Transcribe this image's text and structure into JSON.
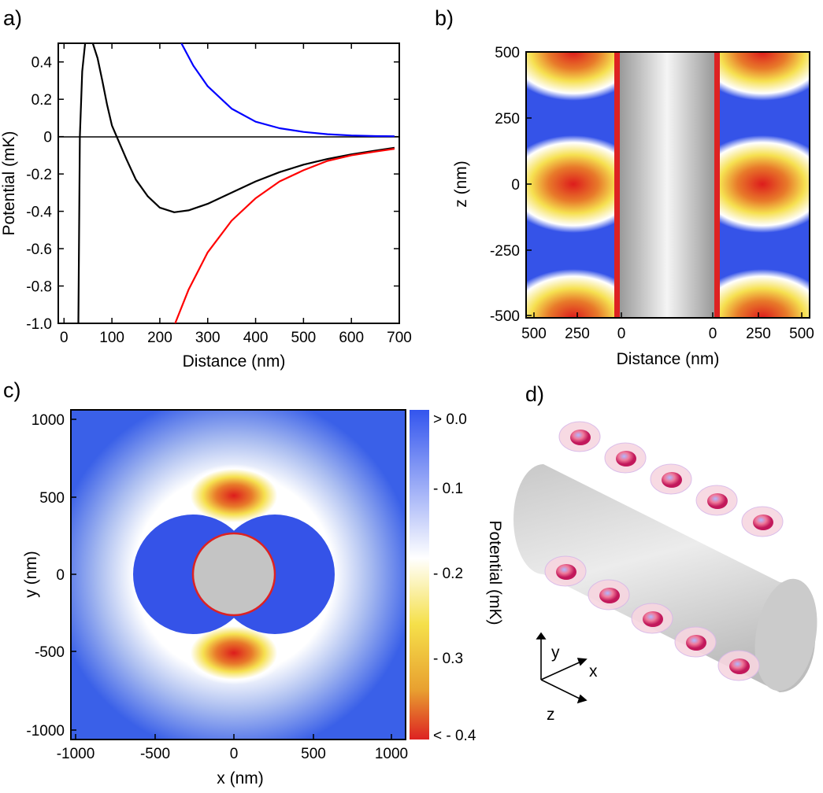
{
  "panels": {
    "a": "a)",
    "b": "b)",
    "c": "c)",
    "d": "d)"
  },
  "chart_data": [
    {
      "panel": "a",
      "type": "line",
      "xlabel": "Distance (nm)",
      "ylabel": "Potential (mK)",
      "xlim": [
        -12,
        700
      ],
      "ylim": [
        -1.0,
        0.5
      ],
      "xticks": [
        "0",
        "100",
        "200",
        "300",
        "400",
        "500",
        "600",
        "700"
      ],
      "yticks": [
        "0.4",
        "0.2",
        "0",
        "-0.2",
        "-0.4",
        "-0.6",
        "-0.8",
        "-1.0"
      ],
      "series": [
        {
          "color": "#000000",
          "x": [
            30,
            33,
            38,
            44,
            50,
            60,
            70,
            80,
            90,
            100,
            110,
            130,
            150,
            175,
            200,
            230,
            260,
            300,
            350,
            400,
            450,
            500,
            550,
            600,
            650,
            690
          ],
          "y": [
            -1.0,
            0.0,
            0.35,
            0.5,
            0.52,
            0.5,
            0.42,
            0.3,
            0.17,
            0.06,
            0.0,
            -0.12,
            -0.23,
            -0.32,
            -0.38,
            -0.405,
            -0.395,
            -0.36,
            -0.3,
            -0.24,
            -0.19,
            -0.15,
            -0.12,
            -0.095,
            -0.075,
            -0.06
          ]
        },
        {
          "color": "#0000ff",
          "x": [
            245,
            270,
            300,
            350,
            400,
            450,
            500,
            550,
            600,
            650,
            690
          ],
          "y": [
            0.5,
            0.38,
            0.27,
            0.15,
            0.08,
            0.045,
            0.025,
            0.013,
            0.006,
            0.003,
            0.002
          ]
        },
        {
          "color": "#ff0000",
          "x": [
            232,
            260,
            300,
            350,
            400,
            450,
            500,
            550,
            600,
            650,
            690
          ],
          "y": [
            -1.0,
            -0.82,
            -0.62,
            -0.45,
            -0.33,
            -0.24,
            -0.18,
            -0.13,
            -0.1,
            -0.08,
            -0.065
          ]
        }
      ]
    },
    {
      "panel": "b",
      "type": "heatmap",
      "xlabel": "Distance (nm)",
      "ylabel": "z (nm)",
      "xticks": [
        "500",
        "250",
        "0",
        "0",
        "250",
        "500"
      ],
      "yticks": [
        "500",
        "250",
        "0",
        "-250",
        "-500"
      ],
      "minima_z": [
        500,
        0,
        -500
      ],
      "minima_distance": 250
    },
    {
      "panel": "c",
      "type": "heatmap",
      "xlabel": "x (nm)",
      "ylabel": "y (nm)",
      "xlim": [
        -1000,
        1000
      ],
      "ylim": [
        -1000,
        1000
      ],
      "xticks": [
        "-1000",
        "-500",
        "0",
        "500",
        "1000"
      ],
      "yticks": [
        "1000",
        "500",
        "0",
        "-500",
        "-1000"
      ],
      "minima": [
        [
          0,
          500
        ],
        [
          0,
          -500
        ]
      ],
      "colorbar": {
        "label": "Potential (mK)",
        "ticks": [
          "> 0.0",
          "- 0.1",
          "- 0.2",
          "- 0.3",
          "< - 0.4"
        ],
        "colors": [
          "#3355ee",
          "#ffffff",
          "#f5e04a",
          "#e8a030",
          "#dd2222"
        ]
      }
    }
  ],
  "panel_d": {
    "axes": [
      "y",
      "x",
      "z"
    ],
    "traps_per_side": 5
  }
}
